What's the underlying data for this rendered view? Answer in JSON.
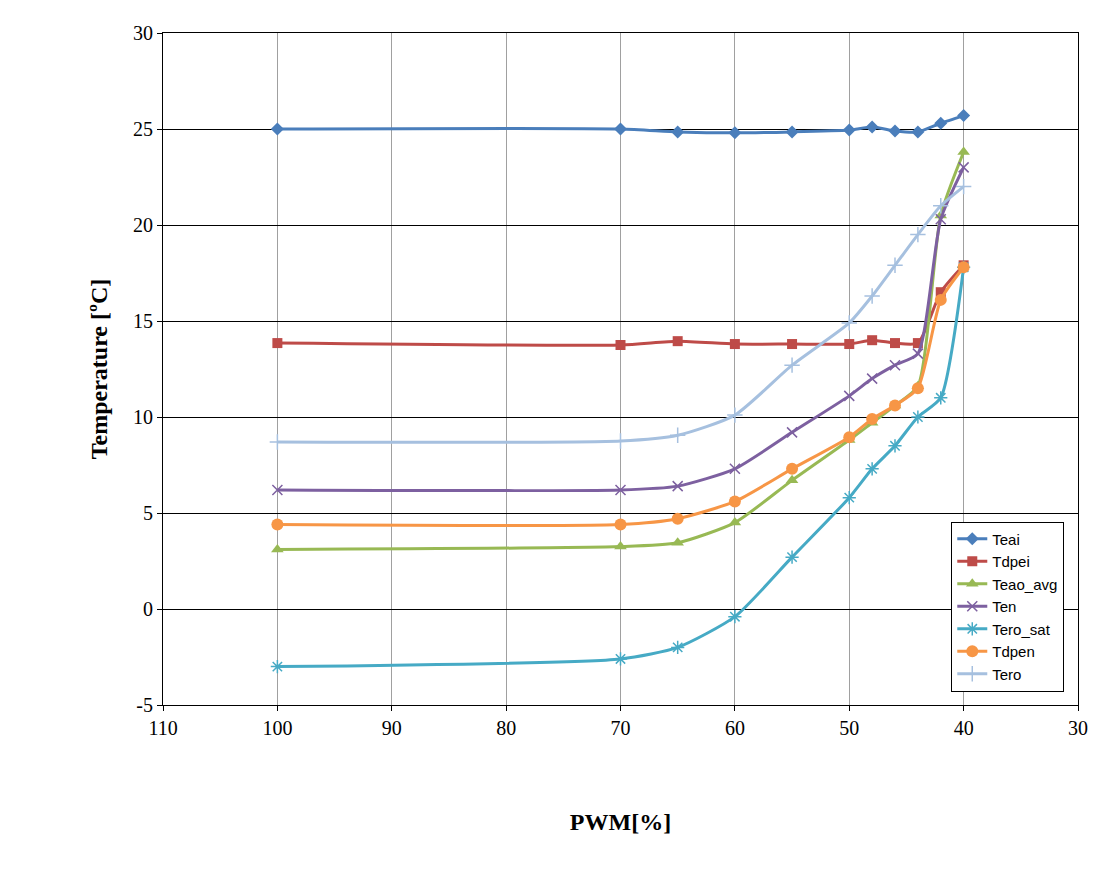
{
  "chart_data": {
    "type": "line",
    "x_label": "PWM[%]",
    "y_label": "Temperature [ºC]",
    "x": [
      100,
      70,
      65,
      60,
      55,
      50,
      48,
      46,
      44,
      42,
      40
    ],
    "series": [
      {
        "name": "Teai",
        "color": "#4a7ebb",
        "marker": "diamond",
        "values": [
          25.0,
          25.0,
          24.85,
          24.8,
          24.85,
          24.95,
          25.1,
          24.9,
          24.85,
          25.3,
          25.7
        ]
      },
      {
        "name": "Tdpei",
        "color": "#be4b48",
        "marker": "square",
        "values": [
          13.85,
          13.75,
          13.95,
          13.8,
          13.8,
          13.8,
          14.0,
          13.85,
          13.85,
          16.5,
          17.9
        ]
      },
      {
        "name": "Teao_avg",
        "color": "#98b954",
        "marker": "triangle",
        "values": [
          3.1,
          3.25,
          3.45,
          4.5,
          6.7,
          8.8,
          9.7,
          10.6,
          11.6,
          20.5,
          23.8
        ]
      },
      {
        "name": "Ten",
        "color": "#7d60a0",
        "marker": "x",
        "values": [
          6.2,
          6.2,
          6.4,
          7.3,
          9.2,
          11.1,
          12.0,
          12.7,
          13.3,
          20.3,
          23.0
        ]
      },
      {
        "name": "Tero_sat",
        "color": "#46aac5",
        "marker": "asterisk",
        "values": [
          -3.0,
          -2.6,
          -2.0,
          -0.4,
          2.7,
          5.8,
          7.3,
          8.5,
          10.0,
          11.0,
          17.8
        ]
      },
      {
        "name": "Tdpen",
        "color": "#f79646",
        "marker": "circle",
        "values": [
          4.4,
          4.4,
          4.7,
          5.6,
          7.3,
          8.95,
          9.9,
          10.6,
          11.5,
          16.1,
          17.8
        ]
      },
      {
        "name": "Tero",
        "color": "#a6c0df",
        "marker": "cross",
        "values": [
          8.7,
          8.75,
          9.05,
          10.1,
          12.7,
          14.9,
          16.3,
          17.9,
          19.5,
          21.0,
          22.0
        ]
      }
    ],
    "xlim": [
      110,
      30
    ],
    "xticks": [
      110,
      100,
      90,
      80,
      70,
      60,
      50,
      40,
      30
    ],
    "ylim": [
      -5,
      30
    ],
    "yticks": [
      -5,
      0,
      5,
      10,
      15,
      20,
      25,
      30
    ],
    "grid": true,
    "legend": "lower right"
  }
}
